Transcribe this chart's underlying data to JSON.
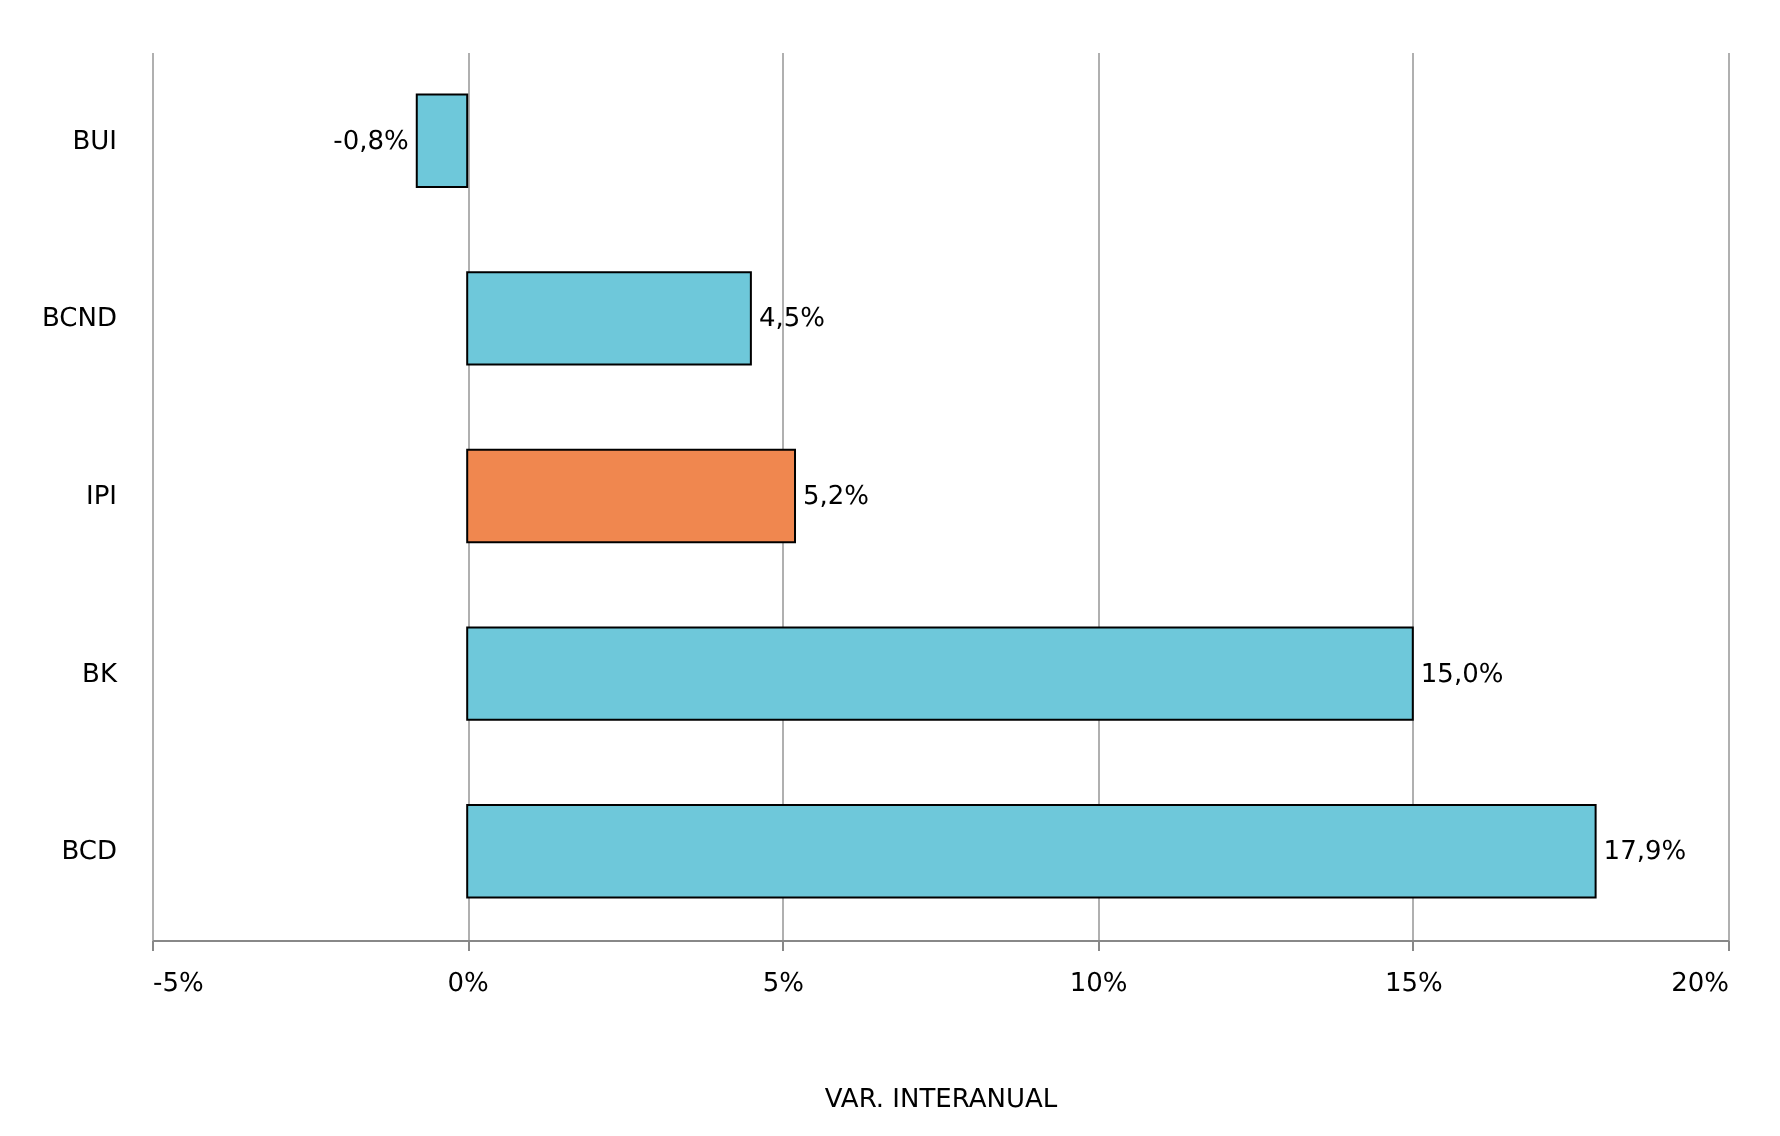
{
  "chart_data": {
    "type": "bar",
    "orientation": "horizontal",
    "categories": [
      "BUI",
      "BCND",
      "IPI",
      "BK",
      "BCD"
    ],
    "values": [
      -0.8,
      4.5,
      5.2,
      15.0,
      17.9
    ],
    "colors": [
      "#6ec8da",
      "#6ec8da",
      "#f0874f",
      "#6ec8da",
      "#6ec8da"
    ],
    "value_labels": [
      "-0,8%",
      "4,5%",
      "5,2%",
      "15,0%",
      "17,9%"
    ],
    "xlabel": "VAR. INTERANUAL",
    "xlim": [
      -5,
      20
    ],
    "xticks": [
      {
        "value": -5,
        "label": "-5%"
      },
      {
        "value": 0,
        "label": "0%"
      },
      {
        "value": 5,
        "label": "5%"
      },
      {
        "value": 10,
        "label": "10%"
      },
      {
        "value": 15,
        "label": "15%"
      },
      {
        "value": 20,
        "label": "20%"
      }
    ],
    "grid": "x",
    "legend": false
  }
}
